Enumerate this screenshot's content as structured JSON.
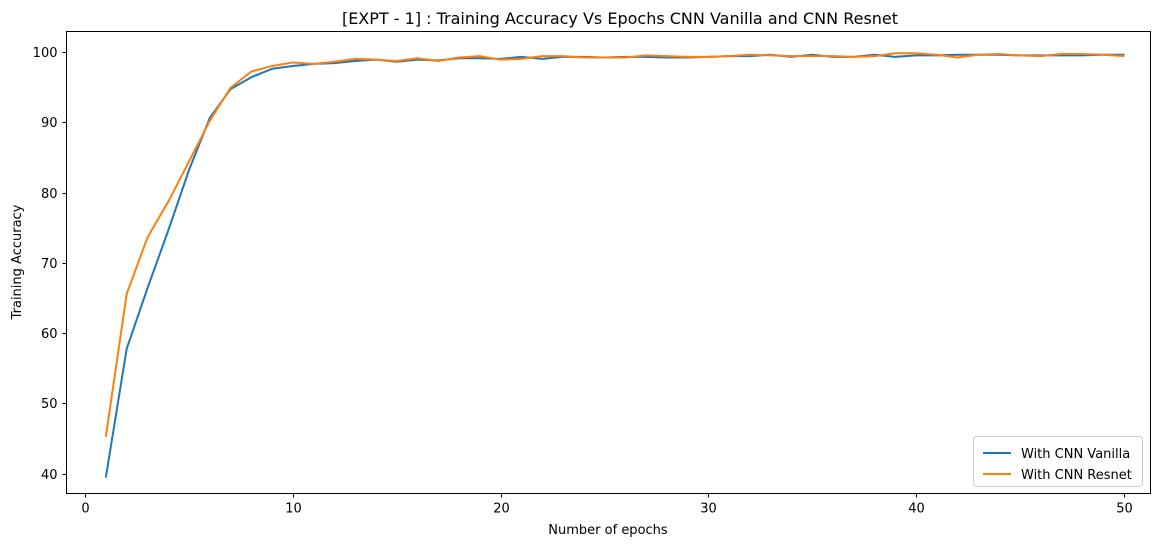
{
  "chart_data": {
    "type": "line",
    "title": "[EXPT - 1] : Training Accuracy Vs Epochs CNN Vanilla and CNN Resnet",
    "xlabel": "Number of epochs",
    "ylabel": "Training Accuracy",
    "xlim": [
      -0.9,
      51.3
    ],
    "ylim": [
      37.2,
      102.9
    ],
    "xticks": [
      0,
      10,
      20,
      30,
      40,
      50
    ],
    "yticks": [
      40,
      50,
      60,
      70,
      80,
      90,
      100
    ],
    "grid": false,
    "legend_position": "lower-right",
    "x": [
      1,
      2,
      3,
      4,
      5,
      6,
      7,
      8,
      9,
      10,
      11,
      12,
      13,
      14,
      15,
      16,
      17,
      18,
      19,
      20,
      21,
      22,
      23,
      24,
      25,
      26,
      27,
      28,
      29,
      30,
      31,
      32,
      33,
      34,
      35,
      36,
      37,
      38,
      39,
      40,
      41,
      42,
      43,
      44,
      45,
      46,
      47,
      48,
      49,
      50
    ],
    "series": [
      {
        "name": "With CNN Vanilla",
        "color": "#1f77b4",
        "values": [
          39.6,
          57.8,
          66.4,
          74.6,
          83.2,
          90.6,
          94.7,
          96.4,
          97.6,
          98.0,
          98.3,
          98.4,
          98.7,
          98.9,
          98.6,
          98.9,
          98.8,
          99.1,
          99.1,
          99.0,
          99.3,
          99.0,
          99.3,
          99.3,
          99.2,
          99.3,
          99.3,
          99.2,
          99.2,
          99.3,
          99.4,
          99.4,
          99.6,
          99.3,
          99.6,
          99.3,
          99.3,
          99.6,
          99.3,
          99.5,
          99.5,
          99.6,
          99.6,
          99.6,
          99.5,
          99.5,
          99.5,
          99.5,
          99.6,
          99.6
        ]
      },
      {
        "name": "With CNN Resnet",
        "color": "#ff7f0e",
        "values": [
          45.4,
          65.6,
          73.6,
          78.7,
          84.4,
          90.2,
          94.9,
          97.2,
          98.0,
          98.5,
          98.3,
          98.6,
          99.0,
          98.9,
          98.7,
          99.1,
          98.7,
          99.2,
          99.4,
          98.9,
          99.0,
          99.4,
          99.4,
          99.2,
          99.2,
          99.2,
          99.5,
          99.4,
          99.3,
          99.3,
          99.4,
          99.6,
          99.5,
          99.4,
          99.4,
          99.4,
          99.3,
          99.4,
          99.8,
          99.8,
          99.6,
          99.2,
          99.6,
          99.7,
          99.5,
          99.4,
          99.7,
          99.7,
          99.6,
          99.4
        ]
      }
    ]
  }
}
